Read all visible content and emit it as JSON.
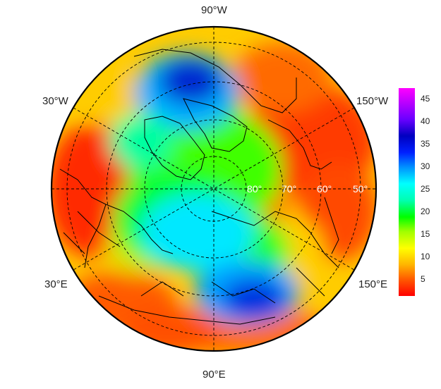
{
  "map": {
    "projection": "north-polar-stereographic",
    "longitude_labels": {
      "top": "90°W",
      "upper_left": "30°W",
      "upper_right": "150°W",
      "lower_left": "30°E",
      "lower_right": "150°E",
      "bottom": "90°E"
    },
    "latitude_labels": [
      "80°",
      "70°",
      "60°",
      "50°"
    ],
    "colors": {
      "coastline": "#000000",
      "border": "#000000",
      "graticule": "#000000",
      "latitude_label": "#ffffff"
    }
  },
  "colorbar": {
    "ticks": [
      "45",
      "40",
      "35",
      "30",
      "25",
      "20",
      "15",
      "10",
      "5"
    ],
    "min": 1,
    "max": 47,
    "colors": [
      "#ff0000",
      "#ff5a00",
      "#ffb400",
      "#ffff00",
      "#a0ff00",
      "#00ff00",
      "#00ffb0",
      "#00ffff",
      "#0090ff",
      "#0020ff",
      "#0000c0",
      "#6a00ff",
      "#b000ff",
      "#ff00ff"
    ]
  }
}
